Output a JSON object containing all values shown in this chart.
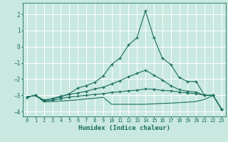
{
  "title": "",
  "xlabel": "Humidex (Indice chaleur)",
  "xlim": [
    -0.5,
    23.5
  ],
  "ylim": [
    -4.3,
    2.7
  ],
  "yticks": [
    -4,
    -3,
    -2,
    -1,
    0,
    1,
    2
  ],
  "xticks": [
    0,
    1,
    2,
    3,
    4,
    5,
    6,
    7,
    8,
    9,
    10,
    11,
    12,
    13,
    14,
    15,
    16,
    17,
    18,
    19,
    20,
    21,
    22,
    23
  ],
  "bg_color": "#c8e8e0",
  "grid_color": "#ffffff",
  "line_color": "#1a6e5e",
  "lines": [
    {
      "x": [
        0,
        1,
        2,
        3,
        4,
        5,
        6,
        7,
        8,
        9,
        10,
        11,
        12,
        13,
        14,
        15,
        16,
        17,
        18,
        19,
        20,
        21,
        22,
        23
      ],
      "y": [
        -3.1,
        -3.0,
        -3.3,
        -3.2,
        -3.1,
        -2.9,
        -2.55,
        -2.4,
        -2.2,
        -1.8,
        -1.1,
        -0.7,
        0.1,
        0.55,
        2.2,
        0.55,
        -0.7,
        -1.1,
        -1.9,
        -2.15,
        -2.15,
        -3.0,
        -3.0,
        -3.85
      ],
      "marker": "+"
    },
    {
      "x": [
        0,
        1,
        2,
        3,
        4,
        5,
        6,
        7,
        8,
        9,
        10,
        11,
        12,
        13,
        14,
        15,
        16,
        17,
        18,
        19,
        20,
        21,
        22,
        23
      ],
      "y": [
        -3.1,
        -3.0,
        -3.3,
        -3.2,
        -3.05,
        -2.95,
        -2.85,
        -2.75,
        -2.6,
        -2.5,
        -2.3,
        -2.1,
        -1.85,
        -1.65,
        -1.45,
        -1.75,
        -2.05,
        -2.4,
        -2.65,
        -2.75,
        -2.8,
        -3.0,
        -3.0,
        -3.85
      ],
      "marker": "+"
    },
    {
      "x": [
        0,
        1,
        2,
        3,
        4,
        5,
        6,
        7,
        8,
        9,
        10,
        11,
        12,
        13,
        14,
        15,
        16,
        17,
        18,
        19,
        20,
        21,
        22,
        23
      ],
      "y": [
        -3.1,
        -3.0,
        -3.35,
        -3.3,
        -3.2,
        -3.1,
        -3.05,
        -3.0,
        -2.95,
        -2.9,
        -2.82,
        -2.78,
        -2.72,
        -2.68,
        -2.6,
        -2.62,
        -2.7,
        -2.72,
        -2.8,
        -2.85,
        -2.9,
        -3.0,
        -3.0,
        -3.85
      ],
      "marker": "+"
    },
    {
      "x": [
        0,
        1,
        2,
        3,
        4,
        5,
        6,
        7,
        8,
        9,
        10,
        11,
        12,
        13,
        14,
        15,
        16,
        17,
        18,
        19,
        20,
        21,
        22,
        23
      ],
      "y": [
        -3.1,
        -3.0,
        -3.4,
        -3.38,
        -3.35,
        -3.32,
        -3.28,
        -3.22,
        -3.18,
        -3.12,
        -3.55,
        -3.55,
        -3.55,
        -3.55,
        -3.55,
        -3.52,
        -3.5,
        -3.48,
        -3.45,
        -3.42,
        -3.38,
        -3.25,
        -3.0,
        -3.85
      ],
      "marker": null
    }
  ]
}
